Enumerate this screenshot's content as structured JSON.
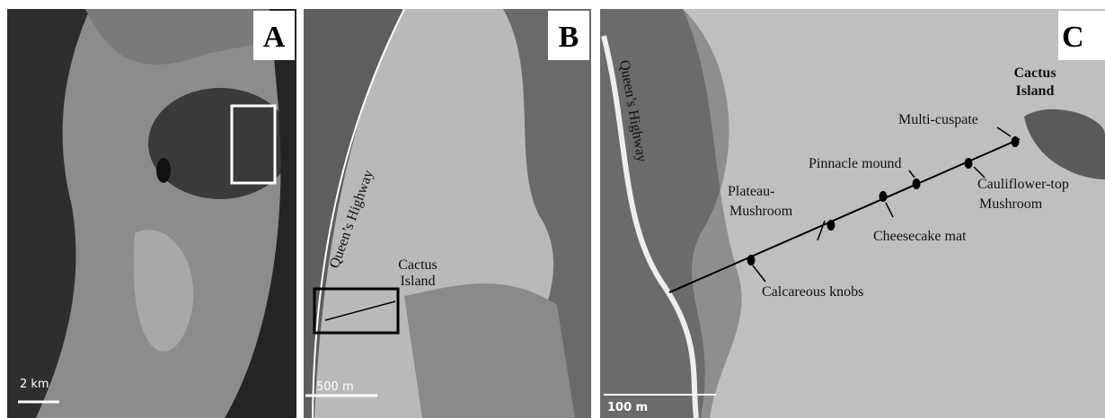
{
  "panels": [
    {
      "letter": "A",
      "scale_bar": "2 km"
    },
    {
      "letter": "B",
      "scale_bar": "500 m",
      "road": "Queen’s Highway",
      "island": [
        "Cactus",
        "Island"
      ]
    },
    {
      "letter": "C",
      "scale_bar": "100 m",
      "road": "Queen’s Highway",
      "island": [
        "Cactus",
        "Island"
      ],
      "features": [
        [
          "Multi-cuspate"
        ],
        [
          "Pinnacle mound"
        ],
        [
          "Plateau-",
          "Mushroom"
        ],
        [
          "Cauliflower-top",
          "Mushroom"
        ],
        [
          "Cheesecake mat"
        ],
        [
          "Calcareous knobs"
        ]
      ]
    }
  ]
}
